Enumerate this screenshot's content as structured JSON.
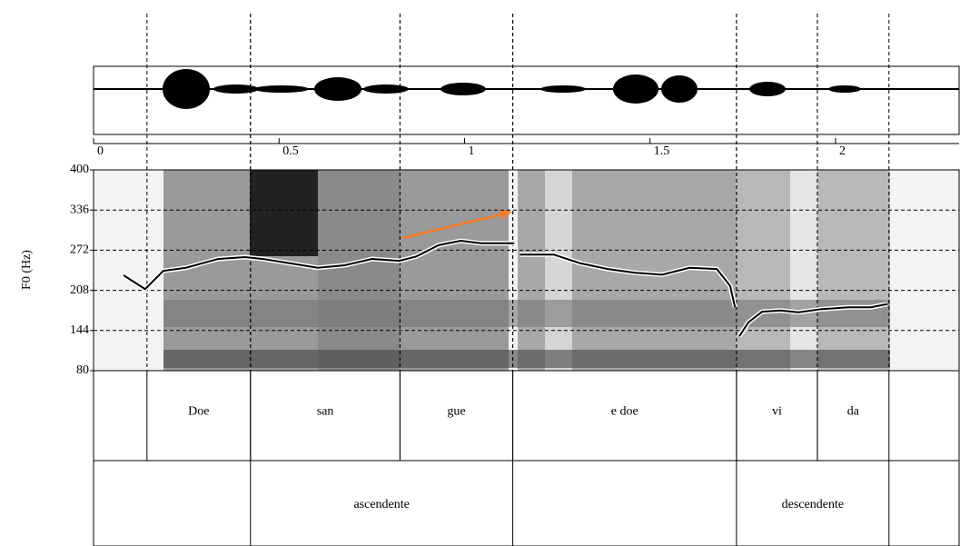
{
  "chart_data": {
    "type": "line",
    "y_label": "F0 (Hz)",
    "xlim": [
      0,
      2.333
    ],
    "xticks": [
      0,
      0.5,
      1,
      1.5,
      2
    ],
    "ylim": [
      80,
      400
    ],
    "yticks": [
      80,
      144,
      208,
      272,
      336,
      400
    ],
    "grid": true,
    "x": [
      0.081,
      0.139,
      0.188,
      0.249,
      0.335,
      0.408,
      0.457,
      0.531,
      0.604,
      0.677,
      0.751,
      0.824,
      0.87,
      0.93,
      0.99,
      1.044,
      1.134,
      1.14,
      1.149,
      1.24,
      1.313,
      1.386,
      1.46,
      1.533,
      1.606,
      1.68,
      1.716,
      1.729,
      1.735,
      1.741,
      1.765,
      1.802,
      1.851,
      1.9,
      1.961,
      2.035,
      2.095,
      2.139
    ],
    "series": [
      {
        "color": "#000000",
        "values": [
          232,
          210,
          239,
          244,
          258,
          261,
          258,
          251,
          244,
          248,
          258,
          255,
          262,
          280,
          287,
          283,
          283,
          null,
          265,
          265,
          251,
          242,
          236,
          233,
          244,
          242,
          215,
          181,
          null,
          135,
          157,
          174,
          176,
          173,
          178,
          181,
          181,
          186
        ]
      }
    ],
    "tiers": [
      {
        "intervals": [
          {
            "label": "Doe",
            "start": 0.144,
            "end": 0.423
          },
          {
            "label": "san",
            "start": 0.423,
            "end": 0.826
          },
          {
            "label": "gue",
            "start": 0.826,
            "end": 1.13
          },
          {
            "label": "e doe",
            "start": 1.13,
            "end": 1.733
          },
          {
            "label": "vi",
            "start": 1.733,
            "end": 1.951
          },
          {
            "label": "da",
            "start": 1.951,
            "end": 2.144
          }
        ]
      },
      {
        "intervals": [
          {
            "label": "ascendente",
            "start": 0.423,
            "end": 1.13
          },
          {
            "label": "descendente",
            "start": 1.733,
            "end": 2.144
          }
        ]
      }
    ]
  }
}
